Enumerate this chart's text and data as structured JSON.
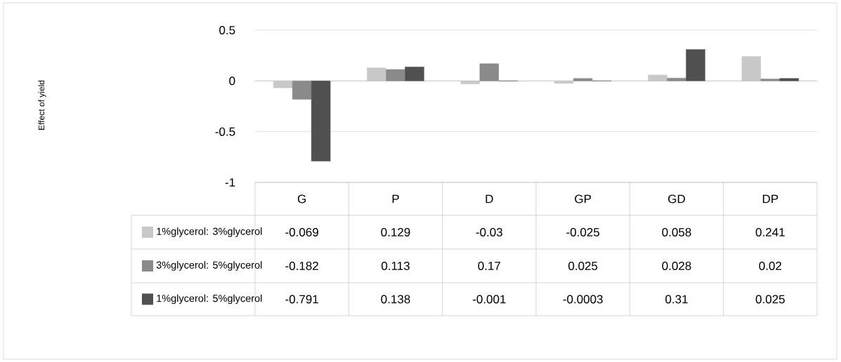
{
  "chart_data": {
    "type": "bar",
    "categories": [
      "G",
      "P",
      "D",
      "GP",
      "GD",
      "DP"
    ],
    "series": [
      {
        "name": "1%glycerol: 3%glycerol",
        "color": "#c8c8c8",
        "values": [
          -0.069,
          0.129,
          -0.03,
          -0.025,
          0.058,
          0.241
        ],
        "value_labels": [
          "-0.069",
          "0.129",
          "-0.03",
          "-0.025",
          "0.058",
          "0.241"
        ]
      },
      {
        "name": "3%glycerol: 5%glycerol",
        "color": "#8a8a8a",
        "values": [
          -0.182,
          0.113,
          0.17,
          0.025,
          0.028,
          0.02
        ],
        "value_labels": [
          "-0.182",
          "0.113",
          "0.17",
          "0.025",
          "0.028",
          "0.02"
        ]
      },
      {
        "name": "1%glycerol: 5%glycerol",
        "color": "#505050",
        "values": [
          -0.791,
          0.138,
          -0.001,
          -0.0003,
          0.31,
          0.025
        ],
        "value_labels": [
          "-0.791",
          "0.138",
          "-0.001",
          "-0.0003",
          "0.31",
          "0.025"
        ]
      }
    ],
    "annotations": [
      "Effect of yield"
    ],
    "ylim": [
      -1,
      0.5
    ],
    "yticks": [
      -1,
      -0.5,
      0,
      0.5
    ],
    "grid": "y",
    "legend": "bottom"
  }
}
